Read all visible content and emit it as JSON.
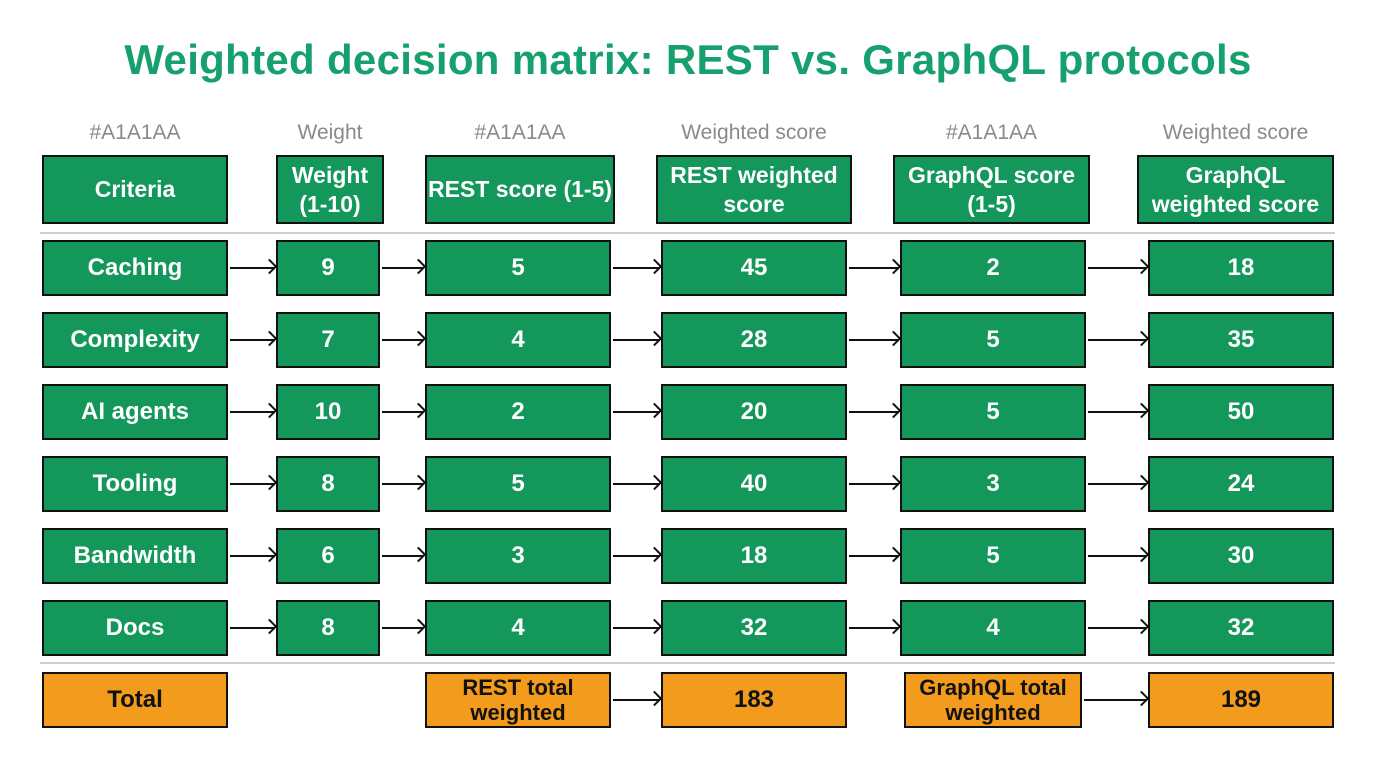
{
  "title": "Weighted decision matrix: REST vs. GraphQL protocols",
  "column_hints": [
    "#A1A1AA",
    "Weight",
    "#A1A1AA",
    "Weighted score",
    "#A1A1AA",
    "Weighted score"
  ],
  "headers": [
    "Criteria",
    "Weight (1-10)",
    "REST score (1-5)",
    "REST weighted score",
    "GraphQL score (1-5)",
    "GraphQL weighted score"
  ],
  "rows": [
    {
      "criteria": "Caching",
      "weight": "9",
      "rest_score": "5",
      "rest_weighted": "45",
      "graphql_score": "2",
      "graphql_weighted": "18"
    },
    {
      "criteria": "Complexity",
      "weight": "7",
      "rest_score": "4",
      "rest_weighted": "28",
      "graphql_score": "5",
      "graphql_weighted": "35"
    },
    {
      "criteria": "AI agents",
      "weight": "10",
      "rest_score": "2",
      "rest_weighted": "20",
      "graphql_score": "5",
      "graphql_weighted": "50"
    },
    {
      "criteria": "Tooling",
      "weight": "8",
      "rest_score": "5",
      "rest_weighted": "40",
      "graphql_score": "3",
      "graphql_weighted": "24"
    },
    {
      "criteria": "Bandwidth",
      "weight": "6",
      "rest_score": "3",
      "rest_weighted": "18",
      "graphql_score": "5",
      "graphql_weighted": "30"
    },
    {
      "criteria": "Docs",
      "weight": "8",
      "rest_score": "4",
      "rest_weighted": "32",
      "graphql_score": "4",
      "graphql_weighted": "32"
    }
  ],
  "totals": {
    "label": "Total",
    "rest_label": "REST total weighted",
    "rest_value": "183",
    "graphql_label": "GraphQL total weighted",
    "graphql_value": "189"
  },
  "colors": {
    "title": "#16a06e",
    "cell_fill": "#13975b",
    "total_fill": "#f29b1c",
    "hint_text": "#8a8a8a",
    "border": "#111111"
  }
}
